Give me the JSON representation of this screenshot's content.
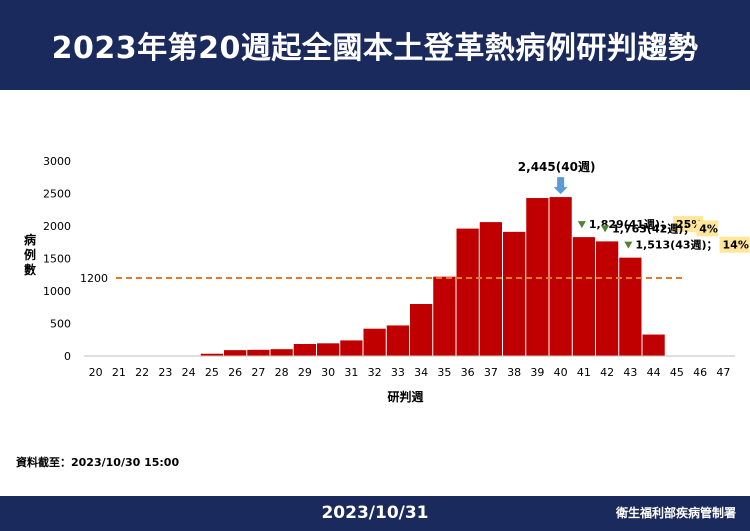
{
  "header": {
    "title": "2023年第20週起全國本土登革熱病例研判趨勢"
  },
  "footer": {
    "date": "2023/10/31",
    "org": "衛生福利部疾病管制署"
  },
  "source_note": "資料截至：2023/10/30 15:00",
  "chart_data": {
    "type": "bar",
    "xlabel": "研判週",
    "ylabel": "病例數",
    "categories": [
      "20",
      "21",
      "22",
      "23",
      "24",
      "25",
      "26",
      "27",
      "28",
      "29",
      "30",
      "31",
      "32",
      "33",
      "34",
      "35",
      "36",
      "37",
      "38",
      "39",
      "40",
      "41",
      "42",
      "43",
      "44",
      "45",
      "46",
      "47"
    ],
    "values": [
      0,
      0,
      0,
      0,
      0,
      35,
      90,
      95,
      105,
      185,
      195,
      240,
      420,
      470,
      800,
      1220,
      1960,
      2060,
      1910,
      2430,
      2445,
      1829,
      1763,
      1513,
      330,
      0,
      0,
      0
    ],
    "ylim": [
      0,
      3000
    ],
    "yticks": [
      0,
      500,
      1000,
      1500,
      2000,
      2500,
      3000
    ],
    "bar_color": "#c00000",
    "reference_line": {
      "value": 1200,
      "label": "1200",
      "color": "#e07b2a"
    },
    "peak_annotation": {
      "category": "40",
      "text": "2,445(40週)",
      "arrow_color": "#5b9bd5"
    },
    "decline_annotations": [
      {
        "category": "41",
        "text": "1,829(41週)；",
        "pct": "25%"
      },
      {
        "category": "42",
        "text": "1,763(42週)；",
        "pct": "4%"
      },
      {
        "category": "43",
        "text": "1,513(43週)；",
        "pct": "14%"
      }
    ],
    "annotation_marker_color": "#548235",
    "pct_highlight_color": "#ffe699",
    "grid": false
  }
}
